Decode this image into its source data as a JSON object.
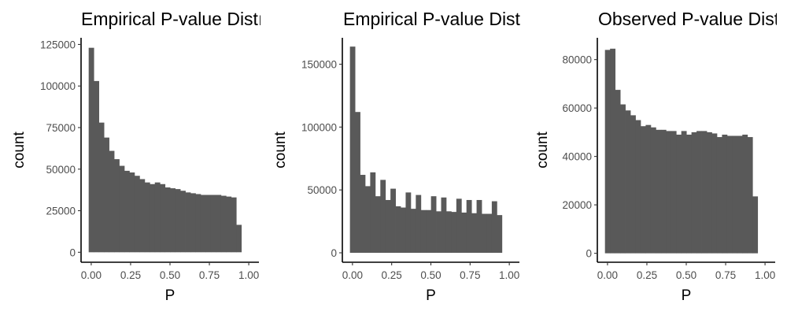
{
  "chart_data": [
    {
      "type": "bar",
      "title": "Empirical P-value Distı",
      "xlabel": "P",
      "ylabel": "count",
      "bins": {
        "start": -0.0161,
        "width": 0.0323
      },
      "xlim": [
        -0.0645,
        1.0645
      ],
      "ylim": [
        -6000,
        129000
      ],
      "x_ticks": [
        0,
        0.25,
        0.5,
        0.75,
        1
      ],
      "x_tick_labels": [
        "0.00",
        "0.25",
        "0.50",
        "0.75",
        "1.00"
      ],
      "y_ticks": [
        0,
        25000,
        50000,
        75000,
        100000,
        125000
      ],
      "y_tick_labels": [
        "0",
        "25000",
        "50000",
        "75000",
        "100000",
        "125000"
      ],
      "values": [
        123000,
        103000,
        78000,
        69000,
        61000,
        56000,
        52000,
        49000,
        48000,
        46000,
        44000,
        42000,
        41000,
        42000,
        41000,
        39000,
        38500,
        38000,
        37000,
        36000,
        35500,
        35000,
        34500,
        34500,
        34500,
        34500,
        34000,
        33500,
        33000,
        16500
      ]
    },
    {
      "type": "bar",
      "title": "Empirical P-value Distı",
      "xlabel": "P",
      "ylabel": "count",
      "bins": {
        "start": -0.0161,
        "width": 0.0323
      },
      "xlim": [
        -0.0645,
        1.0645
      ],
      "ylim": [
        -7500,
        171000
      ],
      "x_ticks": [
        0,
        0.25,
        0.5,
        0.75,
        1
      ],
      "x_tick_labels": [
        "0.00",
        "0.25",
        "0.50",
        "0.75",
        "1.00"
      ],
      "y_ticks": [
        0,
        50000,
        100000,
        150000
      ],
      "y_tick_labels": [
        "0",
        "50000",
        "100000",
        "150000"
      ],
      "values": [
        164000,
        112000,
        62000,
        53000,
        64000,
        45000,
        58000,
        42000,
        51000,
        37000,
        36000,
        48000,
        35000,
        46000,
        34000,
        34000,
        45000,
        33000,
        44000,
        33000,
        32500,
        43000,
        32000,
        42000,
        31500,
        42000,
        31000,
        31000,
        41000,
        30000
      ]
    },
    {
      "type": "bar",
      "title": "Observed P-value Distr",
      "xlabel": "P",
      "ylabel": "count",
      "bins": {
        "start": -0.0161,
        "width": 0.0323
      },
      "xlim": [
        -0.0645,
        1.0645
      ],
      "ylim": [
        -3700,
        89000
      ],
      "x_ticks": [
        0,
        0.25,
        0.5,
        0.75,
        1
      ],
      "x_tick_labels": [
        "0.00",
        "0.25",
        "0.50",
        "0.75",
        "1.00"
      ],
      "y_ticks": [
        0,
        20000,
        40000,
        60000,
        80000
      ],
      "y_tick_labels": [
        "0",
        "20000",
        "40000",
        "60000",
        "80000"
      ],
      "values": [
        84000,
        84500,
        67500,
        61500,
        59000,
        57000,
        55000,
        52500,
        53000,
        52000,
        51000,
        51000,
        50500,
        50500,
        49000,
        50500,
        49000,
        50000,
        50500,
        50500,
        50000,
        49500,
        48000,
        49000,
        48500,
        48500,
        48500,
        49000,
        48000,
        23500
      ]
    }
  ]
}
